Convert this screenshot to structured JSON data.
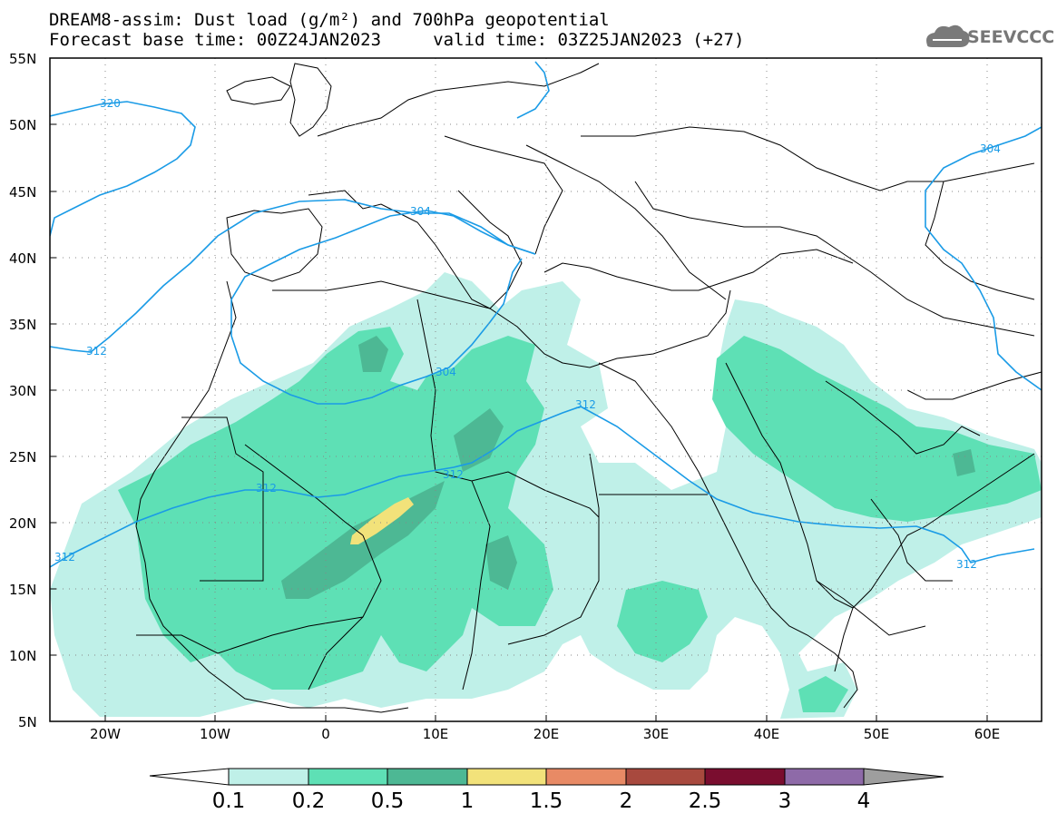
{
  "header": {
    "title_line1": "DREAM8-assim: Dust load (g/m²) and 700hPa geopotential",
    "title_line2": "Forecast base time: 00Z24JAN2023     valid time: 03Z25JAN2023 (+27)"
  },
  "logo": {
    "text": "SEEVCCC",
    "icon": "cloud-logo-icon"
  },
  "map": {
    "lat_labels": [
      "55N",
      "50N",
      "45N",
      "40N",
      "35N",
      "30N",
      "25N",
      "20N",
      "15N",
      "10N",
      "5N"
    ],
    "lon_labels": [
      "20W",
      "10W",
      "0",
      "10E",
      "20E",
      "30E",
      "40E",
      "50E",
      "60E"
    ],
    "contour_labels": [
      "320",
      "312",
      "304",
      "312",
      "304",
      "312",
      "312",
      "304",
      "312",
      "312"
    ]
  },
  "colorbar": {
    "labels": [
      "0.1",
      "0.2",
      "0.5",
      "1",
      "1.5",
      "2",
      "2.5",
      "3",
      "4"
    ],
    "colors": [
      "#ffffff",
      "#bff0e8",
      "#5ee0b5",
      "#4db894",
      "#f2e27a",
      "#e88a65",
      "#a8493e",
      "#7a0d2f",
      "#8e6aa8",
      "#9e9e9e"
    ]
  },
  "colors": {
    "contour": "#1a9be6",
    "coast": "#000000",
    "dust_low": "#bff0e8",
    "dust_mid": "#5ee0b5",
    "dust_high": "#4db894",
    "dust_peak": "#f2e27a"
  }
}
